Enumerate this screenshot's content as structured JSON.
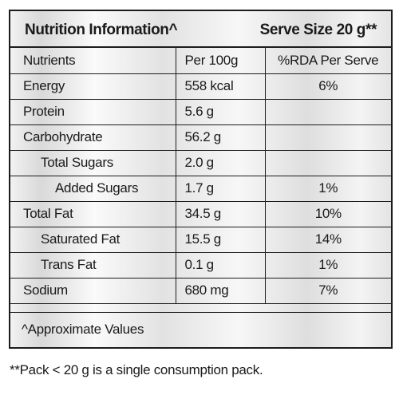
{
  "header": {
    "title": "Nutrition Information^",
    "serve_size": "Serve Size 20 g**"
  },
  "table": {
    "columns": [
      "Nutrients",
      "Per 100g",
      "%RDA Per Serve"
    ],
    "rows": [
      {
        "name": "Energy",
        "per100g": "558 kcal",
        "rda": "6%"
      },
      {
        "name": "Protein",
        "per100g": "5.6 g",
        "rda": ""
      },
      {
        "name": "Carbohydrate",
        "per100g": "56.2 g",
        "rda": ""
      },
      {
        "name": "Total Sugars",
        "per100g": "2.0 g",
        "rda": ""
      },
      {
        "name": "Added Sugars",
        "per100g": "1.7 g",
        "rda": "1%"
      },
      {
        "name": "Total Fat",
        "per100g": "34.5 g",
        "rda": "10%"
      },
      {
        "name": "Saturated Fat",
        "per100g": "15.5 g",
        "rda": "14%"
      },
      {
        "name": "Trans Fat",
        "per100g": "0.1 g",
        "rda": "1%"
      },
      {
        "name": "Sodium",
        "per100g": "680 mg",
        "rda": "7%"
      }
    ]
  },
  "footer": {
    "note": "^Approximate Values"
  },
  "footnote": "**Pack < 20 g is a single consumption pack."
}
